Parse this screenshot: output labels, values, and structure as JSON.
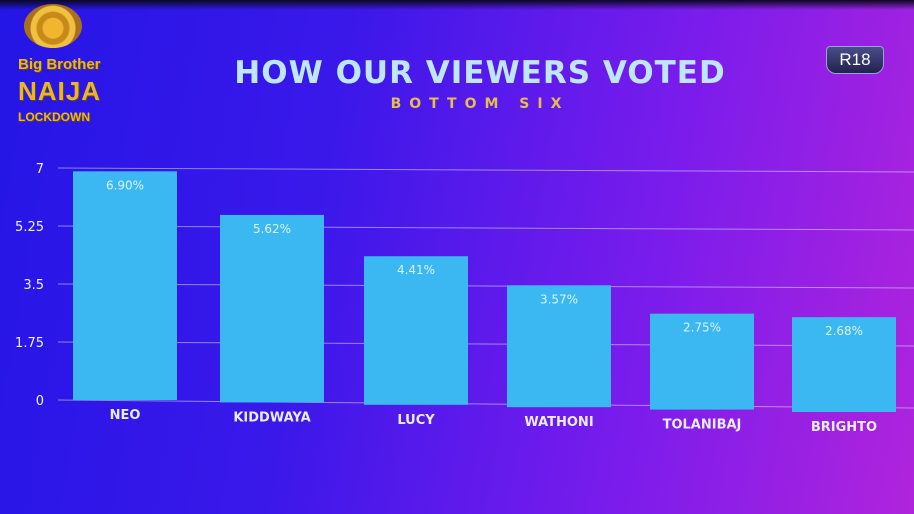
{
  "logo": {
    "line1": "Big Brother",
    "line2": "NAIJA",
    "line3": "LOCKDOWN"
  },
  "rating_badge": "R18",
  "chart_data": {
    "type": "bar",
    "title": "HOW OUR VIEWERS VOTED",
    "subtitle": "BOTTOM SIX",
    "categories": [
      "NEO",
      "KIDDWAYA",
      "LUCY",
      "WATHONI",
      "TOLANIBAJ",
      "BRIGHTO"
    ],
    "values": [
      6.9,
      5.62,
      4.41,
      3.57,
      2.75,
      2.68
    ],
    "data_labels": [
      "6.90%",
      "5.62%",
      "4.41%",
      "3.57%",
      "2.75%",
      "2.68%"
    ],
    "ylim": [
      0,
      7
    ],
    "yticks": [
      "0",
      "1.75",
      "3.5",
      "5.25",
      "7"
    ],
    "grid": true,
    "bar_color": "#3bb8f2",
    "xlabel": "",
    "ylabel": ""
  }
}
